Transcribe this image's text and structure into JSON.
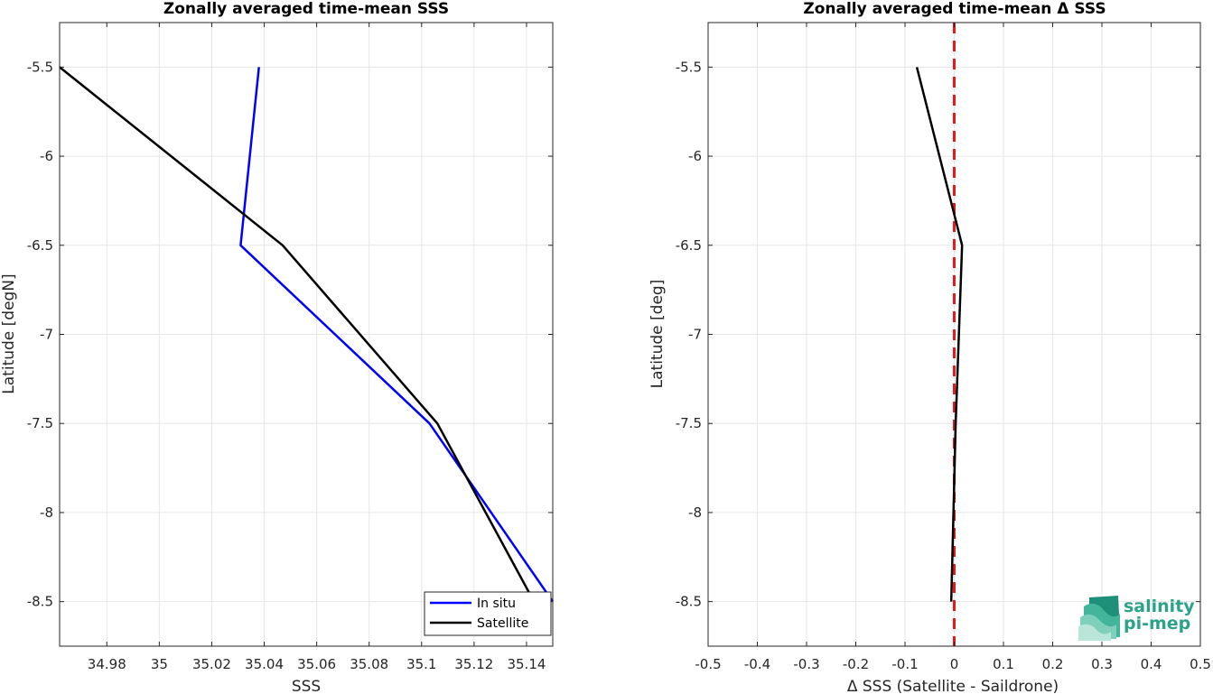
{
  "chart_data": [
    {
      "type": "line",
      "title": "Zonally averaged time-mean SSS",
      "xlabel": "SSS",
      "ylabel": "Latitude [degN]",
      "xlim": [
        34.962,
        35.15
      ],
      "ylim": [
        -8.75,
        -5.25
      ],
      "xticks": [
        34.98,
        35.0,
        35.02,
        35.04,
        35.06,
        35.08,
        35.1,
        35.12,
        35.14
      ],
      "xtick_labels": [
        "34.98",
        "35",
        "35.02",
        "35.04",
        "35.06",
        "35.08",
        "35.1",
        "35.12",
        "35.14"
      ],
      "yticks": [
        -8.5,
        -8,
        -7.5,
        -7,
        -6.5,
        -6,
        -5.5
      ],
      "ytick_labels": [
        "-8.5",
        "-8",
        "-7.5",
        "-7",
        "-6.5",
        "-6",
        "-5.5"
      ],
      "grid": true,
      "legend": "bottom-right",
      "series": [
        {
          "name": "In situ",
          "color": "#0000ff",
          "x": [
            35.038,
            35.031,
            35.103,
            35.15
          ],
          "y": [
            -5.5,
            -6.5,
            -7.5,
            -8.5
          ]
        },
        {
          "name": "Satellite",
          "color": "#000000",
          "x": [
            34.962,
            35.047,
            35.106,
            35.141
          ],
          "y": [
            -5.5,
            -6.5,
            -7.5,
            -8.45
          ]
        }
      ]
    },
    {
      "type": "line",
      "title": "Zonally averaged time-mean Δ SSS",
      "xlabel": "Δ SSS (Satellite - Saildrone)",
      "ylabel": "Latitude [deg]",
      "xlim": [
        -0.5,
        0.5
      ],
      "ylim": [
        -8.75,
        -5.25
      ],
      "xticks": [
        -0.5,
        -0.4,
        -0.3,
        -0.2,
        -0.1,
        0,
        0.1,
        0.2,
        0.3,
        0.4,
        0.5
      ],
      "xtick_labels": [
        "-0.5",
        "-0.4",
        "-0.3",
        "-0.2",
        "-0.1",
        "0",
        "0.1",
        "0.2",
        "0.3",
        "0.4",
        "0.5"
      ],
      "yticks": [
        -8.5,
        -8,
        -7.5,
        -7,
        -6.5,
        -6,
        -5.5
      ],
      "ytick_labels": [
        "-8.5",
        "-8",
        "-7.5",
        "-7",
        "-6.5",
        "-6",
        "-5.5"
      ],
      "grid": true,
      "zero_line": {
        "x": 0,
        "color": "#e41a1c",
        "style": "dashed"
      },
      "series": [
        {
          "color": "#000000",
          "x": [
            -0.076,
            0.016,
            0.003,
            -0.006
          ],
          "y": [
            -5.5,
            -6.5,
            -7.5,
            -8.5
          ]
        }
      ]
    }
  ],
  "logo": {
    "text_line1": "salinity",
    "text_line2": "pi-mep",
    "color": "#2aa389",
    "icon": "salinity-waves-logo"
  }
}
